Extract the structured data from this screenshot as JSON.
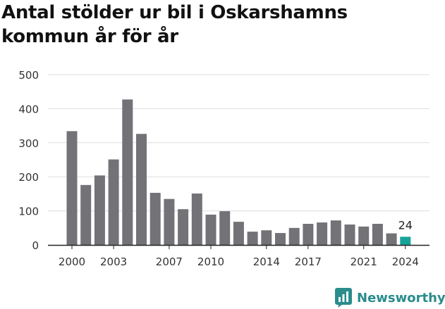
{
  "title": "Antal stölder ur bil i Oskarshamns kommun år för år",
  "brand": {
    "name": "Newsworthy",
    "icon": "newsworthy-logo-icon",
    "color": "#2a8c8c"
  },
  "colors": {
    "bar": "#737277",
    "highlight": "#17a39a",
    "grid": "#dddddd",
    "axis": "#222222",
    "tick_text": "#333333"
  },
  "chart_data": {
    "type": "bar",
    "title": "Antal stölder ur bil i Oskarshamns kommun år för år",
    "xlabel": "",
    "ylabel": "",
    "ylim": [
      0,
      500
    ],
    "yticks": [
      0,
      100,
      200,
      300,
      400,
      500
    ],
    "grid": true,
    "categories": [
      2000,
      2001,
      2002,
      2003,
      2004,
      2005,
      2006,
      2007,
      2008,
      2009,
      2010,
      2011,
      2012,
      2013,
      2014,
      2015,
      2016,
      2017,
      2018,
      2019,
      2020,
      2021,
      2022,
      2023,
      2024
    ],
    "xtick_labels": [
      "2000",
      "2003",
      "2007",
      "2010",
      "2014",
      "2017",
      "2021",
      "2024"
    ],
    "values": [
      334,
      176,
      204,
      251,
      427,
      326,
      153,
      135,
      105,
      151,
      89,
      99,
      68,
      39,
      43,
      35,
      50,
      62,
      66,
      72,
      60,
      54,
      62,
      34,
      24
    ],
    "highlight": {
      "category": 2024,
      "label": "24"
    }
  }
}
